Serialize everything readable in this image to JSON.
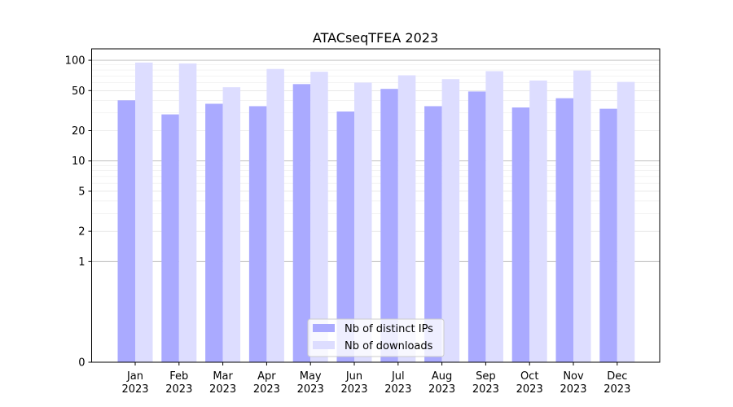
{
  "chart_data": {
    "type": "bar",
    "title": "ATACseqTFEA 2023",
    "xlabel": "",
    "ylabel": "",
    "y_scale": "symlog",
    "ylim": [
      0,
      130
    ],
    "y_ticks": [
      0,
      1,
      2,
      5,
      10,
      20,
      50,
      100
    ],
    "y_tick_labels": [
      "0",
      "1",
      "2",
      "5",
      "10",
      "20",
      "50",
      "100"
    ],
    "grid": true,
    "legend_position": "bottom-center",
    "categories": [
      {
        "month": "Jan",
        "year": "2023"
      },
      {
        "month": "Feb",
        "year": "2023"
      },
      {
        "month": "Mar",
        "year": "2023"
      },
      {
        "month": "Apr",
        "year": "2023"
      },
      {
        "month": "May",
        "year": "2023"
      },
      {
        "month": "Jun",
        "year": "2023"
      },
      {
        "month": "Jul",
        "year": "2023"
      },
      {
        "month": "Aug",
        "year": "2023"
      },
      {
        "month": "Sep",
        "year": "2023"
      },
      {
        "month": "Oct",
        "year": "2023"
      },
      {
        "month": "Nov",
        "year": "2023"
      },
      {
        "month": "Dec",
        "year": "2023"
      }
    ],
    "series": [
      {
        "name": "Nb of distinct IPs",
        "color": "#aaaaff",
        "values": [
          40,
          29,
          37,
          35,
          58,
          31,
          52,
          35,
          49,
          34,
          42,
          33
        ]
      },
      {
        "name": "Nb of downloads",
        "color": "#ddddff",
        "values": [
          95,
          93,
          54,
          82,
          77,
          60,
          71,
          65,
          78,
          63,
          79,
          61
        ]
      }
    ]
  }
}
